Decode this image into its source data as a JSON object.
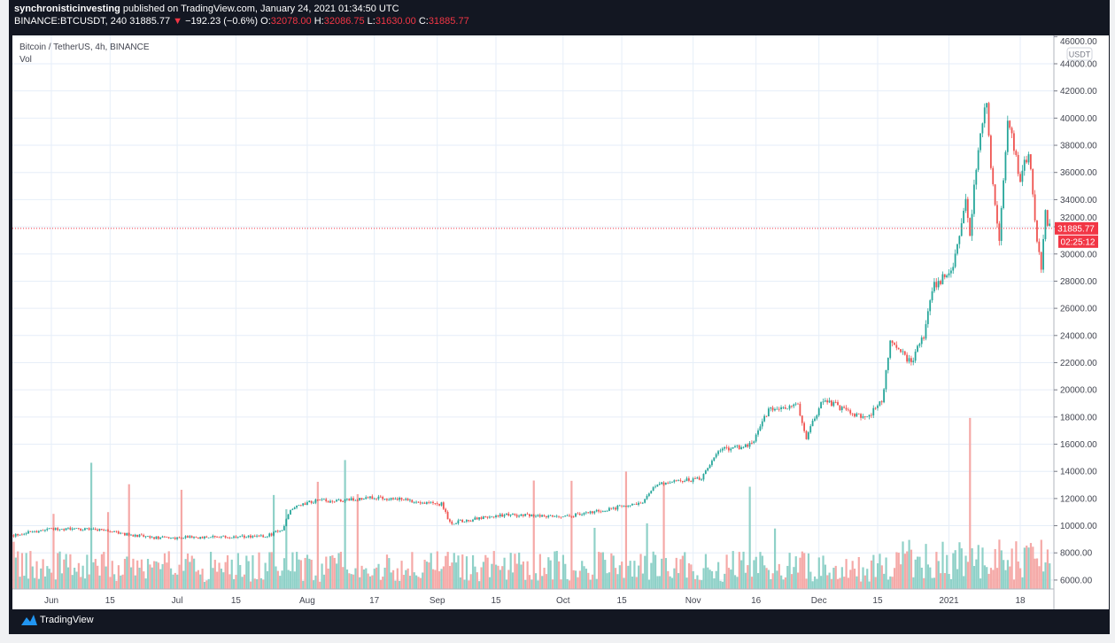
{
  "header": {
    "author": "synchronisticinvesting",
    "published": "published on TradingView.com, January 24, 2021 01:34:50 UTC",
    "symbol": "BINANCE:BTCUSDT, 240",
    "last": "31885.77",
    "change": "−192.23 (−0.6%)",
    "o_label": "O:",
    "o": "32078.00",
    "h_label": "H:",
    "h": "32086.75",
    "l_label": "L:",
    "l": "31630.00",
    "c_label": "C:",
    "c": "31885.77"
  },
  "footer": {
    "brand": "TradingView"
  },
  "colors": {
    "up": "#26a69a",
    "down": "#ef5350",
    "grid": "#e6eef8",
    "vol_up": "#8fd1c8",
    "vol_down": "#f5a9a7",
    "price_tag": "#f23645"
  },
  "chart_data": {
    "type": "candlestick",
    "title": "Bitcoin / TetherUS, 4h, BINANCE",
    "indicator": "Vol",
    "currency": "USDT",
    "last_price_label": "31885.77",
    "countdown": "02:25:12",
    "y_ticks": [
      "46000.00",
      "44000.00",
      "42000.00",
      "40000.00",
      "38000.00",
      "36000.00",
      "34000.00",
      "32000.00",
      "30000.00",
      "28000.00",
      "26000.00",
      "24000.00",
      "22000.00",
      "20000.00",
      "18000.00",
      "16000.00",
      "14000.00",
      "12000.00",
      "10000.00",
      "8000.00",
      "6000.00"
    ],
    "ylim": [
      5500,
      46000
    ],
    "x_ticks": [
      {
        "label": "Jun",
        "day": 0
      },
      {
        "label": "15",
        "day": 14
      },
      {
        "label": "Jul",
        "day": 30
      },
      {
        "label": "15",
        "day": 44
      },
      {
        "label": "Aug",
        "day": 61
      },
      {
        "label": "17",
        "day": 77
      },
      {
        "label": "Sep",
        "day": 92
      },
      {
        "label": "15",
        "day": 106
      },
      {
        "label": "Oct",
        "day": 122
      },
      {
        "label": "15",
        "day": 136
      },
      {
        "label": "Nov",
        "day": 153
      },
      {
        "label": "16",
        "day": 168
      },
      {
        "label": "Dec",
        "day": 183
      },
      {
        "label": "15",
        "day": 197
      },
      {
        "label": "2021",
        "day": 214
      },
      {
        "label": "18",
        "day": 231
      }
    ],
    "x_unit": "days since Jun 1 2020",
    "price_path": [
      [
        -9,
        9300
      ],
      [
        0,
        9800
      ],
      [
        11,
        9700
      ],
      [
        24,
        9100
      ],
      [
        51,
        9200
      ],
      [
        55,
        9700
      ],
      [
        57,
        11200
      ],
      [
        62,
        11800
      ],
      [
        72,
        11900
      ],
      [
        78,
        12100
      ],
      [
        93,
        11600
      ],
      [
        95,
        10200
      ],
      [
        108,
        10800
      ],
      [
        123,
        10700
      ],
      [
        136,
        11400
      ],
      [
        141,
        11600
      ],
      [
        144,
        13000
      ],
      [
        155,
        13500
      ],
      [
        159,
        15500
      ],
      [
        167,
        16000
      ],
      [
        171,
        18500
      ],
      [
        178,
        18800
      ],
      [
        180,
        16500
      ],
      [
        184,
        19300
      ],
      [
        193,
        18000
      ],
      [
        194,
        17800
      ],
      [
        198,
        19200
      ],
      [
        200,
        23500
      ],
      [
        205,
        22000
      ],
      [
        208,
        24000
      ],
      [
        210,
        27500
      ],
      [
        215,
        29000
      ],
      [
        218,
        34000
      ],
      [
        219,
        31500
      ],
      [
        221,
        38000
      ],
      [
        223,
        41500
      ],
      [
        224,
        36000
      ],
      [
        226,
        31000
      ],
      [
        228,
        40000
      ],
      [
        231,
        35500
      ],
      [
        233,
        37500
      ],
      [
        235,
        31000
      ],
      [
        236,
        29000
      ],
      [
        237,
        33000
      ],
      [
        238,
        31886
      ]
    ]
  }
}
